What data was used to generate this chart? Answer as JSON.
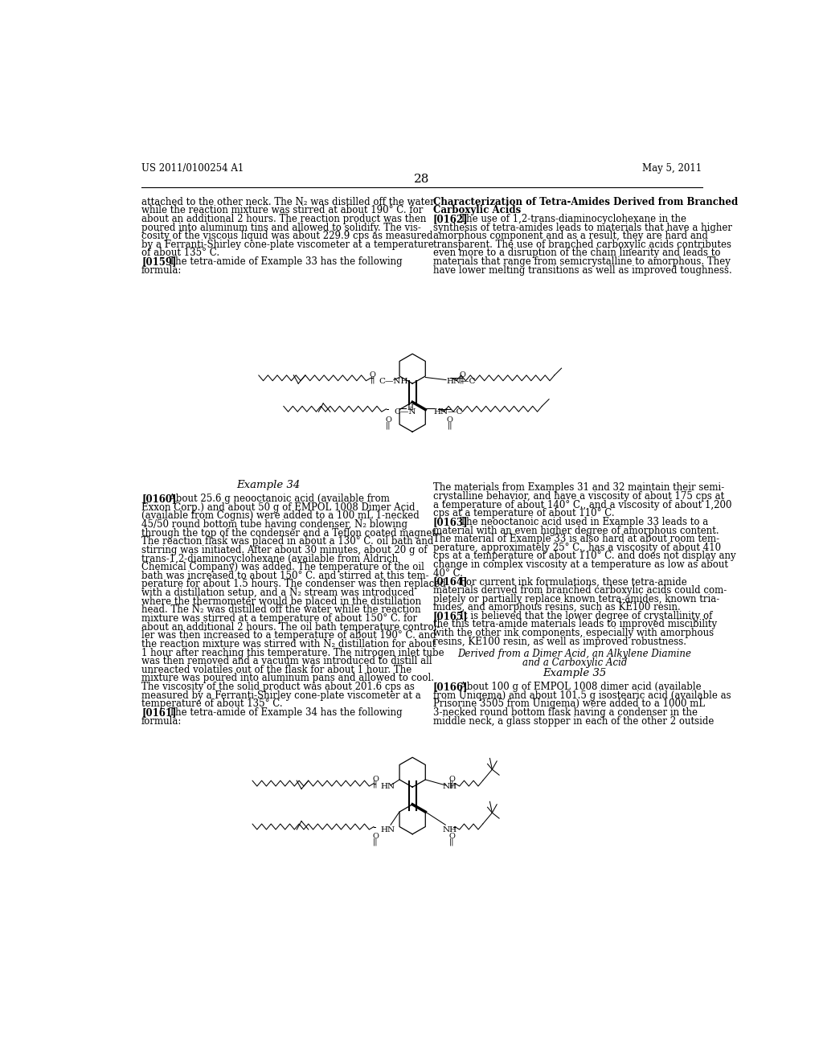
{
  "background_color": "#ffffff",
  "header_left": "US 2011/0100254 A1",
  "header_right": "May 5, 2011",
  "page_number": "28",
  "left_col_lines_top": [
    "attached to the other neck. The N₂ was distilled off the water",
    "while the reaction mixture was stirred at about 190° C. for",
    "about an additional 2 hours. The reaction product was then",
    "poured into aluminum tins and allowed to solidify. The vis-",
    "cosity of the viscous liquid was about 229.9 cps as measured",
    "by a Ferranti-Shirley cone-plate viscometer at a temperature",
    "of about 135° C.",
    "[0159]   The tetra-amide of Example 33 has the following",
    "formula:"
  ],
  "right_col_lines_top": [
    "Characterization of Tetra-Amides Derived from Branched",
    "Carboxylic Acids",
    "[0162]   The use of 1,2-trans-diaminocyclohexane in the",
    "synthesis of tetra-amides leads to materials that have a higher",
    "amorphous component and as a result, they are hard and",
    "transparent. The use of branched carboxylic acids contributes",
    "even more to a disruption of the chain linearity and leads to",
    "materials that range from semicrystalline to amorphous. They",
    "have lower melting transitions as well as improved toughness."
  ],
  "example34_label": "Example 34",
  "left_col_lines_mid": [
    "[0160]   About 25.6 g neooctanoic acid (available from",
    "Exxon Corp.) and about 50 g of EMPOL 1008 Dimer Acid",
    "(available from Cognis) were added to a 100 mL 1-necked",
    "45/50 round bottom tube having condenser, N₂ blowing",
    "through the top of the condenser and a Teflon coated magnet.",
    "The reaction flask was placed in about a 130° C. oil bath and",
    "stirring was initiated. After about 30 minutes, about 20 g of",
    "trans-1,2-diaminocyclohexane (available from Aldrich",
    "Chemical Company) was added. The temperature of the oil",
    "bath was increased to about 150° C. and stirred at this tem-",
    "perature for about 1.5 hours. The condenser was then replaced",
    "with a distillation setup, and a N₂ stream was introduced",
    "where the thermometer would be placed in the distillation",
    "head. The N₂ was distilled off the water while the reaction",
    "mixture was stirred at a temperature of about 150° C. for",
    "about an additional 2 hours. The oil bath temperature control-",
    "ler was then increased to a temperature of about 190° C. and",
    "the reaction mixture was stirred with N₂ distillation for about",
    "1 hour after reaching this temperature. The nitrogen inlet tube",
    "was then removed and a vacuum was introduced to distill all",
    "unreacted volatiles out of the flask for about 1 hour. The",
    "mixture was poured into aluminum pans and allowed to cool.",
    "The viscosity of the solid product was about 201.6 cps as",
    "measured by a Ferranti-Shirley cone-plate viscometer at a",
    "temperature of about 135° C.",
    "[0161]   The tetra-amide of Example 34 has the following",
    "formula:"
  ],
  "right_col_lines_mid": [
    "The materials from Examples 31 and 32 maintain their semi-",
    "crystalline behavior, and have a viscosity of about 175 cps at",
    "a temperature of about 140° C., and a viscosity of about 1,200",
    "cps at a temperature of about 110° C.",
    "[0163]   The neooctanoic acid used in Example 33 leads to a",
    "material with an even higher degree of amorphous content.",
    "The material of Example 33 is also hard at about room tem-",
    "perature, approximately 25° C., has a viscosity of about 410",
    "cps at a temperature of about 110° C. and does not display any",
    "change in complex viscosity at a temperature as low as about",
    "40° C.",
    "[0164]   For current ink formulations, these tetra-amide",
    "materials derived from branched carboxylic acids could com-",
    "pletely or partially replace known tetra-amides, known tria-",
    "mides, and amorphous resins, such as KE100 resin.",
    "[0165]   It is believed that the lower degree of crystallinity of",
    "the this tetra-amide materials leads to improved miscibility",
    "with the other ink components, especially with amorphous",
    "resins, KE100 resin, as well as improved robustness."
  ],
  "derived_line1": "Derived from a Dimer Acid, an Alkylene Diamine",
  "derived_line2": "and a Carboxylic Acid",
  "example35_label": "Example 35",
  "right_col_lines_bot": [
    "[0166]   About 100 g of EMPOL 1008 dimer acid (available",
    "from Uniqema) and about 101.5 g isostearic acid (available as",
    "Prisorine 3505 from Uniqema) were added to a 1000 mL",
    "3-necked round bottom flask having a condenser in the",
    "middle neck, a glass stopper in each of the other 2 outside"
  ]
}
